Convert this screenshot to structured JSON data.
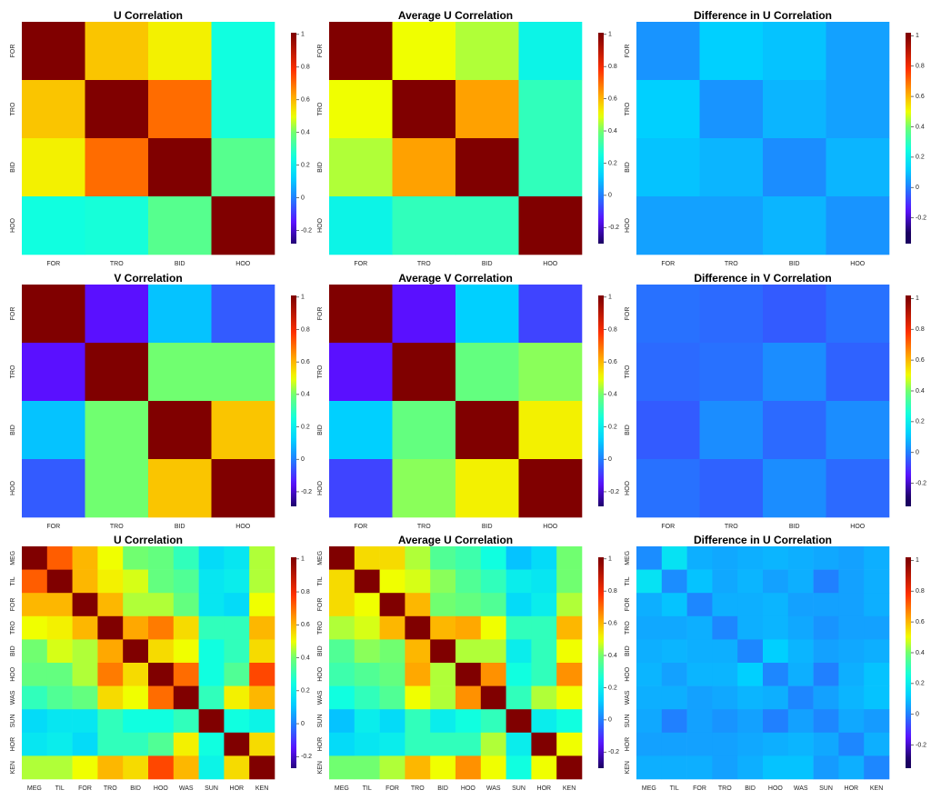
{
  "colormap": [
    {
      "value": -0.3,
      "color": "#1a0060"
    },
    {
      "value": -0.15,
      "color": "#5a10ff"
    },
    {
      "value": 0.0,
      "color": "#2080ff"
    },
    {
      "value": 0.12,
      "color": "#00d0ff"
    },
    {
      "value": 0.25,
      "color": "#10ffe0"
    },
    {
      "value": 0.4,
      "color": "#70ff70"
    },
    {
      "value": 0.5,
      "color": "#f0ff00"
    },
    {
      "value": 0.62,
      "color": "#ffa800"
    },
    {
      "value": 0.78,
      "color": "#ff3000"
    },
    {
      "value": 1.0,
      "color": "#800000"
    }
  ],
  "chart_data": [
    {
      "type": "heatmap",
      "title": "U Correlation",
      "categories": [
        "FOR",
        "TRO",
        "BID",
        "HOO"
      ],
      "values": [
        [
          1,
          0.58,
          0.52,
          0.25
        ],
        [
          0.58,
          1,
          0.7,
          0.26
        ],
        [
          0.52,
          0.7,
          1,
          0.36
        ],
        [
          0.25,
          0.26,
          0.36,
          1
        ]
      ],
      "zlim": [
        -0.28,
        1.01
      ],
      "zticks": [
        -0.2,
        0.0,
        0.2,
        0.4,
        0.6,
        0.8,
        1.0
      ]
    },
    {
      "type": "heatmap",
      "title": "Average U Correlation",
      "categories": [
        "FOR",
        "TRO",
        "BID",
        "HOO"
      ],
      "values": [
        [
          1,
          0.5,
          0.45,
          0.22
        ],
        [
          0.5,
          1,
          0.63,
          0.3
        ],
        [
          0.45,
          0.63,
          1,
          0.3
        ],
        [
          0.22,
          0.3,
          0.3,
          1
        ]
      ],
      "zlim": [
        -0.3,
        1.01
      ],
      "zticks": [
        -0.2,
        0.0,
        0.2,
        0.4,
        0.6,
        0.8,
        1.0
      ]
    },
    {
      "type": "heatmap",
      "title": "Difference in U Correlation",
      "categories": [
        "FOR",
        "TRO",
        "BID",
        "HOO"
      ],
      "values": [
        [
          0.03,
          0.12,
          0.1,
          0.05
        ],
        [
          0.12,
          0.03,
          0.08,
          0.05
        ],
        [
          0.1,
          0.08,
          0.02,
          0.08
        ],
        [
          0.05,
          0.05,
          0.08,
          0.03
        ]
      ],
      "zlim": [
        -0.37,
        1.02
      ],
      "zticks": [
        -0.2,
        0.0,
        0.2,
        0.4,
        0.6,
        0.8,
        1.0
      ]
    },
    {
      "type": "heatmap",
      "title": "V Correlation",
      "categories": [
        "FOR",
        "TRO",
        "BID",
        "HOO"
      ],
      "values": [
        [
          1,
          -0.15,
          0.1,
          -0.05
        ],
        [
          -0.15,
          1,
          0.4,
          0.4
        ],
        [
          0.1,
          0.4,
          1,
          0.58
        ],
        [
          -0.05,
          0.4,
          0.58,
          1
        ]
      ],
      "zlim": [
        -0.29,
        1.01
      ],
      "zticks": [
        -0.2,
        0.0,
        0.2,
        0.4,
        0.6,
        0.8,
        1.0
      ]
    },
    {
      "type": "heatmap",
      "title": "Average V Correlation",
      "categories": [
        "FOR",
        "TRO",
        "BID",
        "HOO"
      ],
      "values": [
        [
          1,
          -0.15,
          0.12,
          -0.08
        ],
        [
          -0.15,
          1,
          0.38,
          0.42
        ],
        [
          0.12,
          0.38,
          1,
          0.52
        ],
        [
          -0.08,
          0.42,
          0.52,
          1
        ]
      ],
      "zlim": [
        -0.29,
        1.01
      ],
      "zticks": [
        -0.2,
        0.0,
        0.2,
        0.4,
        0.6,
        0.8,
        1.0
      ]
    },
    {
      "type": "heatmap",
      "title": "Difference in V Correlation",
      "categories": [
        "FOR",
        "TRO",
        "BID",
        "HOO"
      ],
      "values": [
        [
          -0.02,
          -0.03,
          -0.05,
          -0.02
        ],
        [
          -0.03,
          -0.02,
          0.02,
          -0.04
        ],
        [
          -0.05,
          0.02,
          -0.03,
          0.02
        ],
        [
          -0.02,
          -0.04,
          0.02,
          -0.03
        ]
      ],
      "zlim": [
        -0.35,
        1.02
      ],
      "zticks": [
        -0.2,
        0.0,
        0.2,
        0.4,
        0.6,
        0.8,
        1.0
      ]
    },
    {
      "type": "heatmap",
      "title": "U Correlation",
      "categories": [
        "MEG",
        "TIL",
        "FOR",
        "TRO",
        "BID",
        "HOO",
        "WAS",
        "SUN",
        "HOR",
        "KEN"
      ],
      "values": [
        [
          1,
          0.72,
          0.6,
          0.5,
          0.4,
          0.38,
          0.3,
          0.15,
          0.18,
          0.45
        ],
        [
          0.72,
          1,
          0.6,
          0.52,
          0.48,
          0.38,
          0.35,
          0.18,
          0.2,
          0.45
        ],
        [
          0.6,
          0.6,
          1,
          0.6,
          0.45,
          0.45,
          0.38,
          0.18,
          0.15,
          0.5
        ],
        [
          0.5,
          0.52,
          0.6,
          1,
          0.62,
          0.68,
          0.55,
          0.3,
          0.3,
          0.6
        ],
        [
          0.4,
          0.48,
          0.45,
          0.62,
          1,
          0.55,
          0.5,
          0.25,
          0.3,
          0.55
        ],
        [
          0.38,
          0.38,
          0.45,
          0.68,
          0.55,
          1,
          0.7,
          0.25,
          0.35,
          0.75
        ],
        [
          0.3,
          0.35,
          0.38,
          0.55,
          0.5,
          0.7,
          1,
          0.3,
          0.52,
          0.6
        ],
        [
          0.15,
          0.18,
          0.18,
          0.3,
          0.25,
          0.25,
          0.3,
          1,
          0.25,
          0.22
        ],
        [
          0.18,
          0.2,
          0.15,
          0.3,
          0.3,
          0.35,
          0.52,
          0.25,
          1,
          0.55
        ],
        [
          0.45,
          0.45,
          0.5,
          0.6,
          0.55,
          0.75,
          0.6,
          0.22,
          0.55,
          1
        ]
      ],
      "zlim": [
        -0.27,
        1.01
      ],
      "zticks": [
        -0.2,
        0.0,
        0.2,
        0.4,
        0.6,
        0.8,
        1.0
      ]
    },
    {
      "type": "heatmap",
      "title": "Average U Correlation",
      "categories": [
        "MEG",
        "TIL",
        "FOR",
        "TRO",
        "BID",
        "HOO",
        "WAS",
        "SUN",
        "HOR",
        "KEN"
      ],
      "values": [
        [
          1,
          0.55,
          0.55,
          0.45,
          0.35,
          0.32,
          0.25,
          0.1,
          0.15,
          0.4
        ],
        [
          0.55,
          1,
          0.5,
          0.48,
          0.42,
          0.35,
          0.3,
          0.2,
          0.18,
          0.4
        ],
        [
          0.55,
          0.5,
          1,
          0.6,
          0.4,
          0.38,
          0.35,
          0.15,
          0.2,
          0.45
        ],
        [
          0.45,
          0.48,
          0.6,
          1,
          0.6,
          0.62,
          0.5,
          0.3,
          0.3,
          0.6
        ],
        [
          0.35,
          0.42,
          0.4,
          0.6,
          1,
          0.45,
          0.45,
          0.2,
          0.3,
          0.5
        ],
        [
          0.32,
          0.35,
          0.38,
          0.62,
          0.45,
          1,
          0.65,
          0.25,
          0.3,
          0.65
        ],
        [
          0.25,
          0.3,
          0.35,
          0.5,
          0.45,
          0.65,
          1,
          0.3,
          0.45,
          0.5
        ],
        [
          0.1,
          0.2,
          0.15,
          0.3,
          0.2,
          0.25,
          0.3,
          1,
          0.2,
          0.25
        ],
        [
          0.15,
          0.18,
          0.2,
          0.3,
          0.3,
          0.3,
          0.45,
          0.2,
          1,
          0.5
        ],
        [
          0.4,
          0.4,
          0.45,
          0.6,
          0.5,
          0.65,
          0.5,
          0.25,
          0.5,
          1
        ]
      ],
      "zlim": [
        -0.3,
        1.01
      ],
      "zticks": [
        -0.2,
        0.0,
        0.2,
        0.4,
        0.6,
        0.8,
        1.0
      ]
    },
    {
      "type": "heatmap",
      "title": "Difference in U Correlation",
      "categories": [
        "MEG",
        "TIL",
        "FOR",
        "TRO",
        "BID",
        "HOO",
        "WAS",
        "SUN",
        "HOR",
        "KEN"
      ],
      "values": [
        [
          0.02,
          0.17,
          0.07,
          0.06,
          0.07,
          0.08,
          0.07,
          0.06,
          0.05,
          0.07
        ],
        [
          0.17,
          0.02,
          0.1,
          0.06,
          0.08,
          0.05,
          0.07,
          0.0,
          0.05,
          0.07
        ],
        [
          0.07,
          0.1,
          0.01,
          0.07,
          0.07,
          0.08,
          0.05,
          0.05,
          0.05,
          0.07
        ],
        [
          0.06,
          0.06,
          0.07,
          0.01,
          0.07,
          0.08,
          0.06,
          0.03,
          0.05,
          0.05
        ],
        [
          0.07,
          0.08,
          0.07,
          0.07,
          0.01,
          0.12,
          0.08,
          0.05,
          0.06,
          0.07
        ],
        [
          0.08,
          0.05,
          0.08,
          0.08,
          0.12,
          0.01,
          0.07,
          0.0,
          0.07,
          0.1
        ],
        [
          0.07,
          0.07,
          0.05,
          0.06,
          0.08,
          0.07,
          0.01,
          0.05,
          0.08,
          0.1
        ],
        [
          0.06,
          0.0,
          0.05,
          0.03,
          0.05,
          0.0,
          0.05,
          0.01,
          0.06,
          0.04
        ],
        [
          0.05,
          0.05,
          0.05,
          0.05,
          0.06,
          0.07,
          0.08,
          0.06,
          0.01,
          0.07
        ],
        [
          0.07,
          0.07,
          0.07,
          0.05,
          0.07,
          0.1,
          0.1,
          0.04,
          0.07,
          0.01
        ]
      ],
      "zlim": [
        -0.35,
        1.02
      ],
      "zticks": [
        -0.2,
        0.0,
        0.2,
        0.4,
        0.6,
        0.8,
        1.0
      ]
    }
  ]
}
